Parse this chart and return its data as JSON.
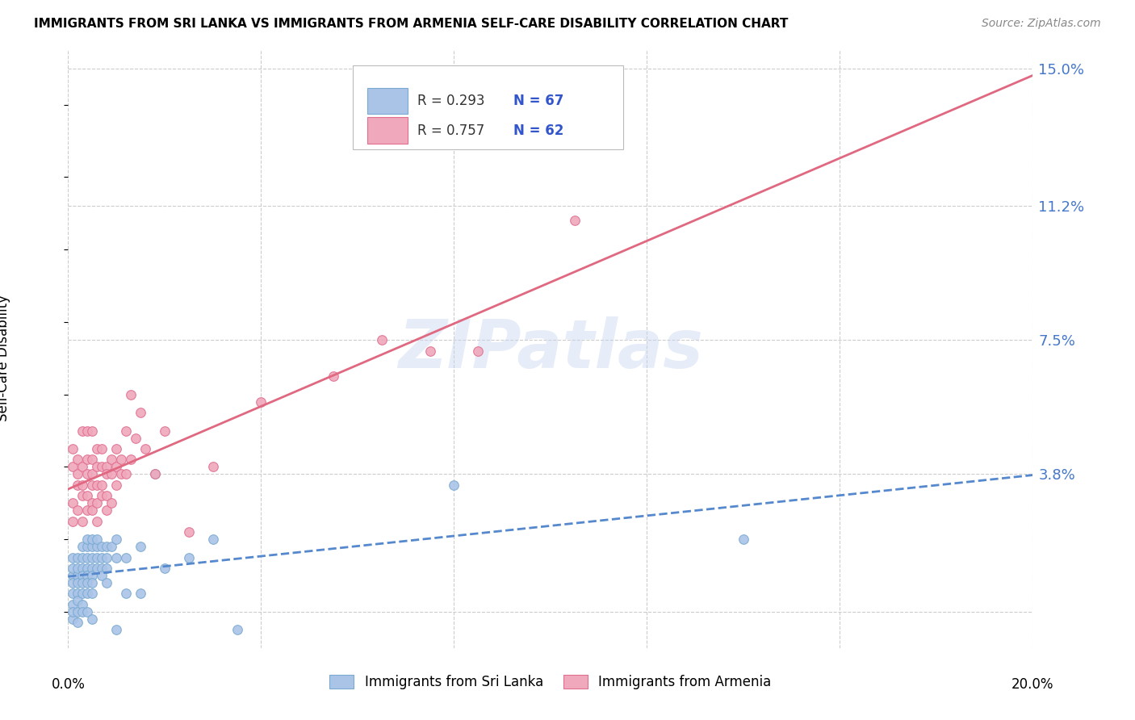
{
  "title": "IMMIGRANTS FROM SRI LANKA VS IMMIGRANTS FROM ARMENIA SELF-CARE DISABILITY CORRELATION CHART",
  "source": "Source: ZipAtlas.com",
  "ylabel": "Self-Care Disability",
  "xlim": [
    0.0,
    0.2
  ],
  "ylim": [
    -0.01,
    0.155
  ],
  "y_tick_vals": [
    0.038,
    0.075,
    0.112,
    0.15
  ],
  "y_tick_labels": [
    "3.8%",
    "7.5%",
    "11.2%",
    "15.0%"
  ],
  "sri_lanka_color": "#aac4e8",
  "sri_lanka_edge": "#7aaad0",
  "armenia_color": "#f0a8bc",
  "armenia_edge": "#e07090",
  "sri_lanka_line_color": "#5588cc",
  "armenia_line_color": "#e06880",
  "sri_lanka_R": 0.293,
  "sri_lanka_N": 67,
  "armenia_R": 0.757,
  "armenia_N": 62,
  "watermark": "ZIPatlas",
  "legend_label_1": "Immigrants from Sri Lanka",
  "legend_label_2": "Immigrants from Armenia",
  "sri_lanka_scatter": [
    [
      0.001,
      0.01
    ],
    [
      0.001,
      0.005
    ],
    [
      0.001,
      0.008
    ],
    [
      0.001,
      0.012
    ],
    [
      0.001,
      0.015
    ],
    [
      0.001,
      0.002
    ],
    [
      0.001,
      -0.002
    ],
    [
      0.001,
      0.0
    ],
    [
      0.002,
      0.01
    ],
    [
      0.002,
      0.012
    ],
    [
      0.002,
      0.015
    ],
    [
      0.002,
      0.008
    ],
    [
      0.002,
      0.005
    ],
    [
      0.002,
      0.003
    ],
    [
      0.002,
      0.0
    ],
    [
      0.002,
      -0.003
    ],
    [
      0.003,
      0.012
    ],
    [
      0.003,
      0.015
    ],
    [
      0.003,
      0.01
    ],
    [
      0.003,
      0.008
    ],
    [
      0.003,
      0.005
    ],
    [
      0.003,
      0.018
    ],
    [
      0.003,
      0.002
    ],
    [
      0.003,
      0.0
    ],
    [
      0.004,
      0.015
    ],
    [
      0.004,
      0.012
    ],
    [
      0.004,
      0.01
    ],
    [
      0.004,
      0.018
    ],
    [
      0.004,
      0.008
    ],
    [
      0.004,
      0.005
    ],
    [
      0.004,
      0.02
    ],
    [
      0.004,
      0.0
    ],
    [
      0.005,
      0.015
    ],
    [
      0.005,
      0.018
    ],
    [
      0.005,
      0.012
    ],
    [
      0.005,
      0.02
    ],
    [
      0.005,
      0.01
    ],
    [
      0.005,
      0.008
    ],
    [
      0.005,
      0.005
    ],
    [
      0.005,
      -0.002
    ],
    [
      0.006,
      0.018
    ],
    [
      0.006,
      0.015
    ],
    [
      0.006,
      0.012
    ],
    [
      0.006,
      0.02
    ],
    [
      0.007,
      0.018
    ],
    [
      0.007,
      0.015
    ],
    [
      0.007,
      0.012
    ],
    [
      0.007,
      0.01
    ],
    [
      0.008,
      0.018
    ],
    [
      0.008,
      0.015
    ],
    [
      0.008,
      0.012
    ],
    [
      0.008,
      0.008
    ],
    [
      0.009,
      0.018
    ],
    [
      0.01,
      0.02
    ],
    [
      0.01,
      0.015
    ],
    [
      0.01,
      -0.005
    ],
    [
      0.012,
      0.015
    ],
    [
      0.012,
      0.005
    ],
    [
      0.015,
      0.018
    ],
    [
      0.015,
      0.005
    ],
    [
      0.018,
      0.038
    ],
    [
      0.02,
      0.012
    ],
    [
      0.025,
      0.015
    ],
    [
      0.03,
      0.02
    ],
    [
      0.035,
      -0.005
    ],
    [
      0.08,
      0.035
    ],
    [
      0.14,
      0.02
    ]
  ],
  "armenia_scatter": [
    [
      0.001,
      0.03
    ],
    [
      0.001,
      0.025
    ],
    [
      0.001,
      0.04
    ],
    [
      0.001,
      0.045
    ],
    [
      0.002,
      0.038
    ],
    [
      0.002,
      0.042
    ],
    [
      0.002,
      0.028
    ],
    [
      0.002,
      0.035
    ],
    [
      0.003,
      0.04
    ],
    [
      0.003,
      0.05
    ],
    [
      0.003,
      0.035
    ],
    [
      0.003,
      0.032
    ],
    [
      0.003,
      0.025
    ],
    [
      0.004,
      0.042
    ],
    [
      0.004,
      0.038
    ],
    [
      0.004,
      0.032
    ],
    [
      0.004,
      0.05
    ],
    [
      0.004,
      0.028
    ],
    [
      0.005,
      0.042
    ],
    [
      0.005,
      0.038
    ],
    [
      0.005,
      0.035
    ],
    [
      0.005,
      0.05
    ],
    [
      0.005,
      0.03
    ],
    [
      0.005,
      0.028
    ],
    [
      0.006,
      0.045
    ],
    [
      0.006,
      0.04
    ],
    [
      0.006,
      0.035
    ],
    [
      0.006,
      0.03
    ],
    [
      0.006,
      0.025
    ],
    [
      0.007,
      0.045
    ],
    [
      0.007,
      0.04
    ],
    [
      0.007,
      0.035
    ],
    [
      0.007,
      0.032
    ],
    [
      0.008,
      0.04
    ],
    [
      0.008,
      0.038
    ],
    [
      0.008,
      0.032
    ],
    [
      0.008,
      0.028
    ],
    [
      0.009,
      0.042
    ],
    [
      0.009,
      0.038
    ],
    [
      0.009,
      0.03
    ],
    [
      0.01,
      0.045
    ],
    [
      0.01,
      0.04
    ],
    [
      0.01,
      0.035
    ],
    [
      0.011,
      0.042
    ],
    [
      0.011,
      0.038
    ],
    [
      0.012,
      0.05
    ],
    [
      0.012,
      0.038
    ],
    [
      0.013,
      0.06
    ],
    [
      0.013,
      0.042
    ],
    [
      0.014,
      0.048
    ],
    [
      0.015,
      0.055
    ],
    [
      0.016,
      0.045
    ],
    [
      0.018,
      0.038
    ],
    [
      0.02,
      0.05
    ],
    [
      0.025,
      0.022
    ],
    [
      0.03,
      0.04
    ],
    [
      0.04,
      0.058
    ],
    [
      0.055,
      0.065
    ],
    [
      0.065,
      0.075
    ],
    [
      0.075,
      0.072
    ],
    [
      0.085,
      0.072
    ],
    [
      0.105,
      0.108
    ]
  ]
}
